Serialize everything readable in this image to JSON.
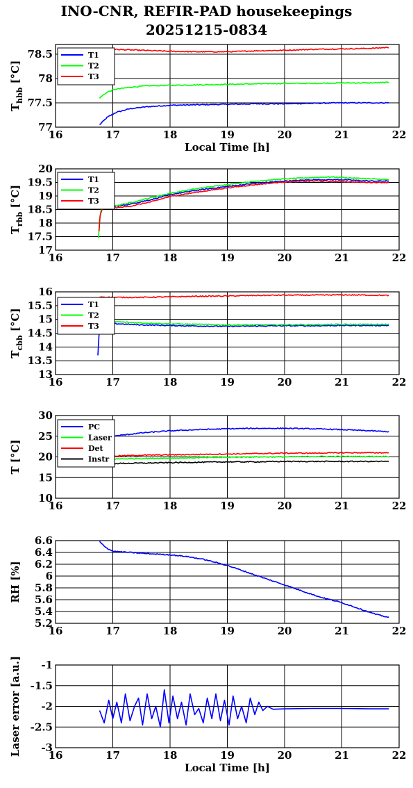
{
  "title": {
    "line1": "INO-CNR, REFIR-PAD housekeepings",
    "line2": "20251215-0834"
  },
  "colors": {
    "blue": "#0000ff",
    "green": "#00ff00",
    "red": "#ff0000",
    "black": "#000000"
  },
  "chart_data": [
    {
      "type": "line",
      "ylabel": "T",
      "ylabel_sub": "hbb",
      "ylabel_unit": "[°C]",
      "xlabel": "Local Time [h]",
      "xlim": [
        16,
        22
      ],
      "ylim": [
        77,
        78.7
      ],
      "xticks": [
        "16",
        "17",
        "18",
        "19",
        "20",
        "21",
        "22"
      ],
      "yticks": [
        77,
        77.5,
        78,
        78.5
      ],
      "ytick_labels": [
        "77",
        "77.5",
        "78",
        "78.5"
      ],
      "grid": true,
      "legend": "top-left",
      "series": [
        {
          "name": "T1",
          "color": "#0000ff",
          "x": [
            16.77,
            16.9,
            17.05,
            17.3,
            17.6,
            18.0,
            18.5,
            19.0,
            19.5,
            20.0,
            20.5,
            21.0,
            21.5,
            21.82
          ],
          "y": [
            77.05,
            77.2,
            77.3,
            77.38,
            77.42,
            77.45,
            77.46,
            77.47,
            77.48,
            77.48,
            77.49,
            77.5,
            77.5,
            77.5
          ]
        },
        {
          "name": "T2",
          "color": "#00ff00",
          "x": [
            16.77,
            16.9,
            17.05,
            17.3,
            17.6,
            18.0,
            18.5,
            19.0,
            19.5,
            20.0,
            20.5,
            21.0,
            21.5,
            21.82
          ],
          "y": [
            77.6,
            77.72,
            77.78,
            77.82,
            77.85,
            77.86,
            77.87,
            77.88,
            77.89,
            77.9,
            77.9,
            77.91,
            77.91,
            77.92
          ]
        },
        {
          "name": "T3",
          "color": "#ff0000",
          "x": [
            16.77,
            17.0,
            17.5,
            18.0,
            18.5,
            19.0,
            19.5,
            20.0,
            20.5,
            21.0,
            21.5,
            21.82
          ],
          "y": [
            78.58,
            78.6,
            78.58,
            78.56,
            78.55,
            78.55,
            78.57,
            78.58,
            78.6,
            78.61,
            78.62,
            78.64
          ]
        }
      ]
    },
    {
      "type": "line",
      "ylabel": "T",
      "ylabel_sub": "rbb",
      "ylabel_unit": "[°C]",
      "xlabel": "",
      "xlim": [
        16,
        22
      ],
      "ylim": [
        17,
        20
      ],
      "xticks": [
        "16",
        "17",
        "18",
        "19",
        "20",
        "21",
        "22"
      ],
      "yticks": [
        17,
        17.5,
        18,
        18.5,
        19,
        19.5,
        20
      ],
      "ytick_labels": [
        "17",
        "17.5",
        "18",
        "18.5",
        "19",
        "19.5",
        "20"
      ],
      "grid": true,
      "legend": "top-left",
      "series": [
        {
          "name": "T1",
          "color": "#0000ff",
          "x": [
            16.77,
            17.0,
            17.3,
            17.7,
            18.0,
            18.5,
            19.0,
            19.5,
            20.0,
            20.5,
            21.0,
            21.5,
            21.82
          ],
          "y": [
            18.55,
            18.6,
            18.7,
            18.88,
            19.05,
            19.22,
            19.35,
            19.47,
            19.55,
            19.6,
            19.6,
            19.55,
            19.55
          ]
        },
        {
          "name": "T2",
          "color": "#00ff00",
          "x": [
            16.75,
            16.77,
            16.8,
            17.0,
            17.3,
            17.7,
            18.0,
            18.5,
            19.0,
            19.5,
            20.0,
            20.5,
            20.8,
            21.0,
            21.5,
            21.82
          ],
          "y": [
            17.45,
            18.2,
            18.55,
            18.62,
            18.75,
            18.95,
            19.1,
            19.28,
            19.42,
            19.55,
            19.63,
            19.68,
            19.7,
            19.68,
            19.63,
            19.6
          ]
        },
        {
          "name": "T3",
          "color": "#ff0000",
          "x": [
            16.76,
            16.78,
            16.82,
            17.0,
            17.3,
            17.7,
            18.0,
            18.5,
            19.0,
            19.5,
            20.0,
            20.5,
            21.0,
            21.5,
            21.82
          ],
          "y": [
            17.7,
            18.3,
            18.52,
            18.55,
            18.62,
            18.8,
            18.98,
            19.15,
            19.3,
            19.42,
            19.52,
            19.55,
            19.53,
            19.5,
            19.5
          ]
        }
      ]
    },
    {
      "type": "line",
      "ylabel": "T",
      "ylabel_sub": "cbb",
      "ylabel_unit": "[°C]",
      "xlabel": "",
      "xlim": [
        16,
        22
      ],
      "ylim": [
        13,
        16
      ],
      "xticks": [
        "16",
        "17",
        "18",
        "19",
        "20",
        "21",
        "22"
      ],
      "yticks": [
        13,
        13.5,
        14,
        14.5,
        15,
        15.5,
        16
      ],
      "ytick_labels": [
        "13",
        "13.5",
        "14",
        "14.5",
        "15",
        "15.5",
        "16"
      ],
      "grid": true,
      "legend": "top-left",
      "series": [
        {
          "name": "T1",
          "color": "#0000ff",
          "x": [
            16.74,
            16.76,
            16.78,
            17.0,
            17.5,
            18.0,
            18.5,
            19.0,
            19.5,
            20.0,
            20.5,
            21.0,
            21.5,
            21.82
          ],
          "y": [
            13.7,
            14.5,
            14.85,
            14.85,
            14.8,
            14.78,
            14.76,
            14.75,
            14.76,
            14.77,
            14.77,
            14.78,
            14.78,
            14.78
          ]
        },
        {
          "name": "T2",
          "color": "#00ff00",
          "x": [
            16.78,
            17.0,
            17.5,
            18.0,
            18.5,
            19.0,
            19.5,
            20.0,
            20.5,
            21.0,
            21.5,
            21.82
          ],
          "y": [
            14.95,
            14.92,
            14.87,
            14.84,
            14.82,
            14.8,
            14.8,
            14.81,
            14.81,
            14.82,
            14.82,
            14.82
          ]
        },
        {
          "name": "T3",
          "color": "#ff0000",
          "x": [
            16.77,
            17.0,
            17.5,
            18.0,
            18.5,
            19.0,
            19.5,
            20.0,
            20.5,
            21.0,
            21.5,
            21.82
          ],
          "y": [
            15.82,
            15.8,
            15.8,
            15.82,
            15.84,
            15.85,
            15.87,
            15.88,
            15.88,
            15.89,
            15.88,
            15.87
          ]
        }
      ]
    },
    {
      "type": "line",
      "ylabel": "T [°C]",
      "xlabel": "",
      "xlim": [
        16,
        22
      ],
      "ylim": [
        10,
        30
      ],
      "xticks": [
        "16",
        "17",
        "18",
        "19",
        "20",
        "21",
        "22"
      ],
      "yticks": [
        10,
        15,
        20,
        25,
        30
      ],
      "ytick_labels": [
        "10",
        "15",
        "20",
        "25",
        "30"
      ],
      "grid": true,
      "legend": "top-left",
      "series": [
        {
          "name": "PC",
          "color": "#0000ff",
          "x": [
            16.77,
            17.0,
            17.5,
            18.0,
            18.5,
            19.0,
            19.5,
            20.0,
            20.5,
            21.0,
            21.5,
            21.82
          ],
          "y": [
            24.6,
            25.0,
            25.8,
            26.3,
            26.6,
            26.8,
            26.9,
            26.9,
            26.8,
            26.6,
            26.3,
            26.1
          ]
        },
        {
          "name": "Laser",
          "color": "#00ff00",
          "x": [
            16.77,
            17.0,
            17.5,
            18.0,
            18.5,
            19.0,
            19.5,
            20.0,
            20.5,
            21.0,
            21.5,
            21.82
          ],
          "y": [
            19.4,
            19.5,
            19.6,
            19.7,
            19.8,
            19.9,
            20.0,
            20.0,
            20.1,
            20.1,
            20.1,
            20.1
          ]
        },
        {
          "name": "Det",
          "color": "#ff0000",
          "x": [
            16.77,
            17.0,
            17.5,
            18.0,
            18.5,
            19.0,
            19.5,
            20.0,
            20.5,
            21.0,
            21.5,
            21.82
          ],
          "y": [
            20.1,
            20.2,
            20.4,
            20.5,
            20.6,
            20.7,
            20.8,
            20.9,
            20.9,
            21.0,
            21.0,
            21.0
          ]
        },
        {
          "name": "Instr",
          "color": "#000000",
          "x": [
            16.77,
            17.0,
            17.5,
            18.0,
            18.5,
            19.0,
            19.5,
            20.0,
            20.5,
            21.0,
            21.5,
            21.82
          ],
          "y": [
            18.3,
            18.4,
            18.5,
            18.6,
            18.7,
            18.8,
            18.8,
            18.9,
            18.9,
            18.9,
            18.9,
            18.9
          ]
        }
      ]
    },
    {
      "type": "line",
      "ylabel": "RH [%]",
      "xlabel": "",
      "xlim": [
        16,
        22
      ],
      "ylim": [
        5.2,
        6.6
      ],
      "xticks": [
        "16",
        "17",
        "18",
        "19",
        "20",
        "21",
        "22"
      ],
      "yticks": [
        5.2,
        5.4,
        5.6,
        5.8,
        6.0,
        6.2,
        6.4,
        6.6
      ],
      "ytick_labels": [
        "5.2",
        "5.4",
        "5.6",
        "5.8",
        "6",
        "6.2",
        "6.4",
        "6.6"
      ],
      "grid": true,
      "legend": "none",
      "series": [
        {
          "color": "#0000ff",
          "x": [
            16.77,
            16.9,
            17.0,
            17.3,
            17.6,
            18.0,
            18.3,
            18.6,
            19.0,
            19.3,
            19.6,
            20.0,
            20.3,
            20.6,
            21.0,
            21.3,
            21.6,
            21.82
          ],
          "y": [
            6.58,
            6.47,
            6.42,
            6.4,
            6.38,
            6.36,
            6.33,
            6.28,
            6.18,
            6.08,
            5.98,
            5.85,
            5.75,
            5.65,
            5.55,
            5.45,
            5.35,
            5.3
          ]
        }
      ]
    },
    {
      "type": "line",
      "ylabel": "Laser error [a.u.]",
      "xlabel": "Local Time [h]",
      "xlim": [
        16,
        22
      ],
      "ylim": [
        -3,
        -1
      ],
      "xticks": [
        "16",
        "17",
        "18",
        "19",
        "20",
        "21",
        "22"
      ],
      "yticks": [
        -3,
        -2.5,
        -2,
        -1.5,
        -1
      ],
      "ytick_labels": [
        "-3",
        "-2.5",
        "-2",
        "-1.5",
        "-1"
      ],
      "grid": true,
      "legend": "none",
      "series": [
        {
          "color": "#0000ff",
          "x": [
            16.77,
            16.85,
            16.93,
            17.0,
            17.07,
            17.15,
            17.22,
            17.3,
            17.38,
            17.45,
            17.52,
            17.6,
            17.68,
            17.75,
            17.83,
            17.9,
            17.98,
            18.05,
            18.13,
            18.2,
            18.28,
            18.35,
            18.43,
            18.5,
            18.58,
            18.65,
            18.73,
            18.8,
            18.88,
            18.95,
            19.03,
            19.1,
            19.18,
            19.25,
            19.33,
            19.4,
            19.48,
            19.55,
            19.62,
            19.7,
            19.8,
            20.0,
            20.5,
            21.0,
            21.5,
            21.82
          ],
          "y": [
            -2.1,
            -2.4,
            -1.85,
            -2.3,
            -1.9,
            -2.4,
            -1.7,
            -2.35,
            -2.0,
            -1.8,
            -2.45,
            -1.7,
            -2.3,
            -2.0,
            -2.5,
            -1.6,
            -2.4,
            -1.75,
            -2.3,
            -1.9,
            -2.45,
            -1.7,
            -2.2,
            -2.05,
            -2.4,
            -1.8,
            -2.3,
            -1.7,
            -2.35,
            -1.85,
            -2.45,
            -1.75,
            -2.3,
            -2.0,
            -2.4,
            -1.8,
            -2.2,
            -1.9,
            -2.1,
            -2.0,
            -2.07,
            -2.06,
            -2.05,
            -2.05,
            -2.06,
            -2.06
          ]
        }
      ]
    }
  ]
}
